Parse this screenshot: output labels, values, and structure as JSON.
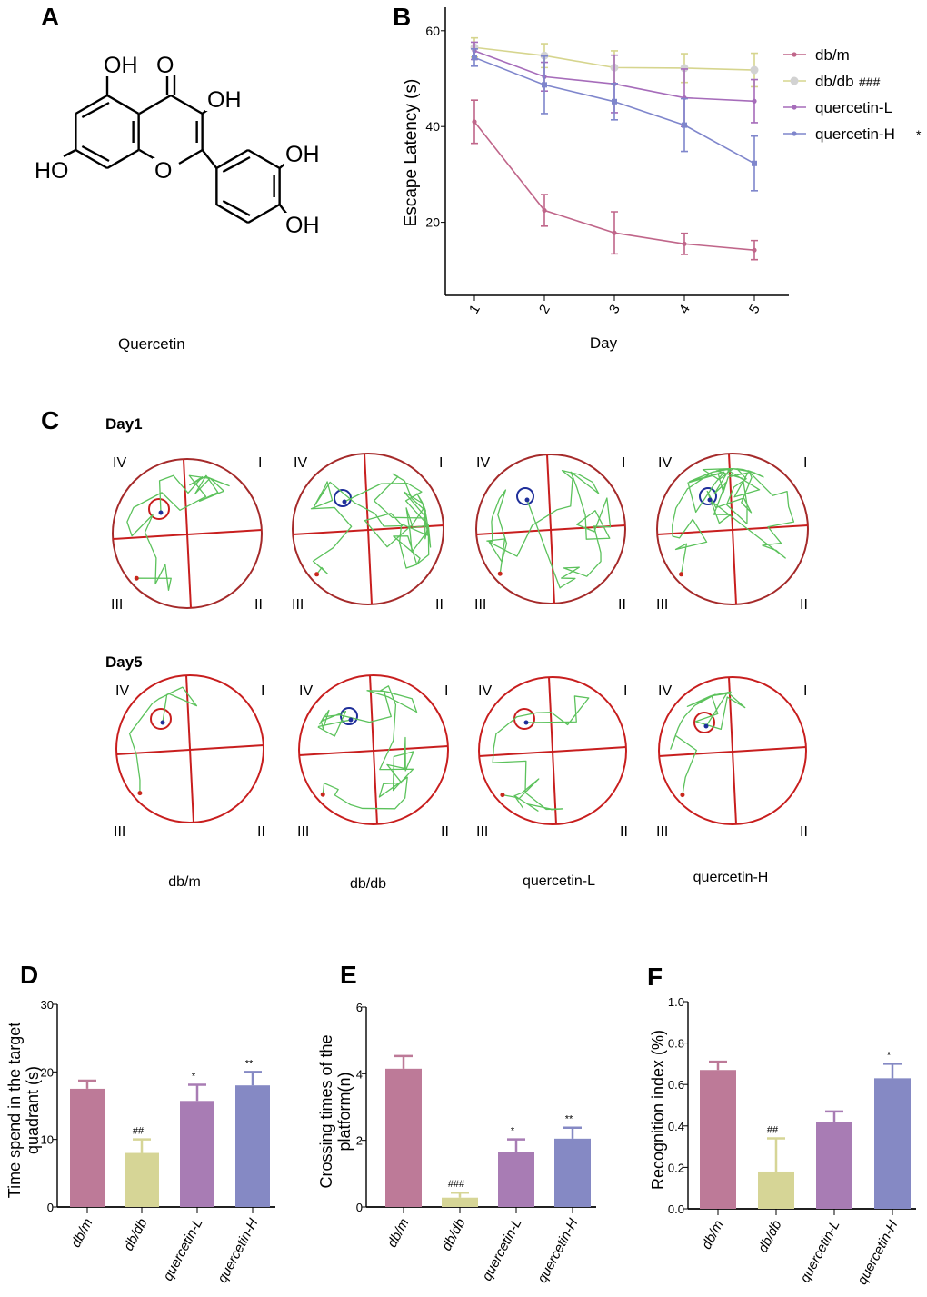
{
  "panels": {
    "a": "A",
    "b": "B",
    "c": "C",
    "d": "D",
    "e": "E",
    "f": "F"
  },
  "structure": {
    "name": "Quercetin",
    "labels": [
      "OH",
      "O",
      "OH",
      "HO",
      "O",
      "OH",
      "OH"
    ]
  },
  "colors": {
    "dbm": "#c0668a",
    "dbdb": "#d6d58e",
    "qL": "#a66cba",
    "qH": "#7f86cc",
    "dbdb_marker": "#d2d2d2",
    "maze": "#c81e1e",
    "path": "#5cc25c",
    "target_blue": "#1f2f9a"
  },
  "panel_c": {
    "rows": [
      "Day1",
      "Day5"
    ],
    "quadrants": [
      "IV",
      "I",
      "III",
      "II"
    ],
    "groups": [
      "db/m",
      "db/db",
      "quercetin-L",
      "quercetin-H"
    ]
  },
  "chart_data": [
    {
      "type": "line",
      "title": "",
      "xlabel": "Day",
      "ylabel": "Escape  Latency (s)",
      "x": [
        1,
        2,
        3,
        4,
        5
      ],
      "xticks": [
        "1",
        "2",
        "3",
        "4",
        "5"
      ],
      "yticks": [
        "20",
        "40",
        "60"
      ],
      "ylim": [
        5,
        65
      ],
      "series": [
        {
          "name": "db/m",
          "annotation": "",
          "values": [
            41,
            22.5,
            17.8,
            15.5,
            14.2
          ],
          "err": [
            4.5,
            3.3,
            4.4,
            2.2,
            2.0
          ]
        },
        {
          "name": "db/db",
          "annotation": "###",
          "values": [
            56.5,
            54.8,
            52.3,
            52.2,
            51.8
          ],
          "err": [
            2.0,
            2.5,
            3.5,
            3.0,
            3.5
          ]
        },
        {
          "name": "quercetin-L",
          "annotation": "",
          "values": [
            55.8,
            50.4,
            48.9,
            46.0,
            45.3
          ],
          "err": [
            1.8,
            3.0,
            6.0,
            6.0,
            4.5
          ]
        },
        {
          "name": "quercetin-H",
          "annotation": "*",
          "values": [
            54.4,
            48.7,
            45.2,
            40.3,
            32.3
          ],
          "err": [
            1.8,
            6.0,
            3.8,
            5.5,
            5.7
          ]
        }
      ],
      "legend": "right"
    },
    {
      "type": "bar",
      "ylabel": [
        "Time spend in the target",
        "quadrant (s)"
      ],
      "categories": [
        "db/m",
        "db/db",
        "quercetin-L",
        "quercetin-H"
      ],
      "values": [
        17.5,
        8.0,
        15.7,
        18.0
      ],
      "err": [
        1.2,
        2.0,
        2.4,
        2.0
      ],
      "annotations": [
        "",
        "##",
        "*",
        "**"
      ],
      "yticks": [
        "0",
        "10",
        "20",
        "30"
      ],
      "ylim": [
        0,
        30
      ]
    },
    {
      "type": "bar",
      "ylabel": [
        "Crossing times of the",
        "platform(n)"
      ],
      "categories": [
        "db/m",
        "db/db",
        "quercetin-L",
        "quercetin-H"
      ],
      "values": [
        4.15,
        0.28,
        1.65,
        2.05
      ],
      "err": [
        0.38,
        0.15,
        0.38,
        0.33
      ],
      "annotations": [
        "",
        "###",
        "*",
        "**"
      ],
      "yticks": [
        "0",
        "2",
        "4",
        "6"
      ],
      "ylim": [
        0,
        6
      ]
    },
    {
      "type": "bar",
      "ylabel": [
        "Recognition index (%)"
      ],
      "categories": [
        "db/m",
        "db/db",
        "quercetin-L",
        "quercetin-H"
      ],
      "values": [
        0.67,
        0.18,
        0.42,
        0.63
      ],
      "err": [
        0.04,
        0.16,
        0.05,
        0.07
      ],
      "annotations": [
        "",
        "##",
        "",
        "*"
      ],
      "yticks": [
        "0.0",
        "0.2",
        "0.4",
        "0.6",
        "0.8",
        "1.0"
      ],
      "ylim": [
        0,
        1
      ]
    }
  ]
}
